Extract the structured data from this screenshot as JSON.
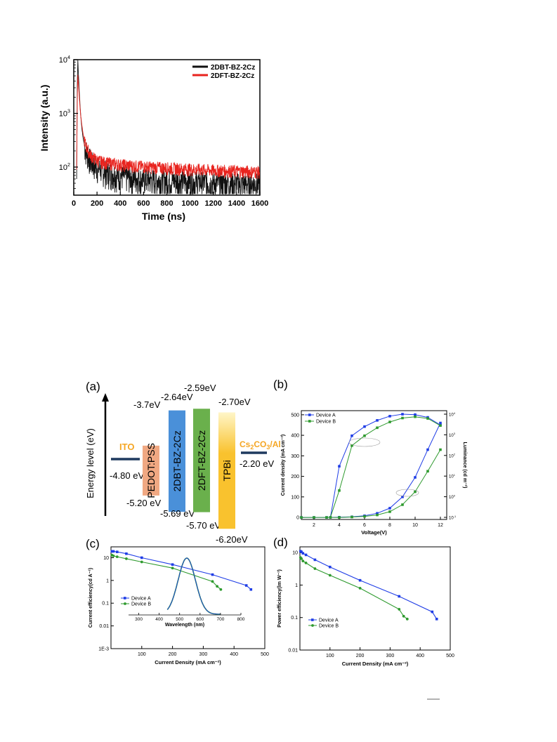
{
  "colors": {
    "black_trace": "#111111",
    "red_trace": "#e8231e",
    "device_a": "#1f3de6",
    "device_b": "#2e9a2e",
    "ito": "#f5a623",
    "pedot": "#f0a882",
    "dbt": "#4a90d9",
    "dft": "#6ab04c",
    "tpbi": "#f9c22e",
    "electrode_bar": "#1e3a5f"
  },
  "chart_data": [
    {
      "type": "line",
      "id": "decay",
      "xlabel": "Time (ns)",
      "ylabel": "Intensity (a.u.)",
      "log_y": true,
      "xlim": [
        0,
        1600
      ],
      "ylim": [
        30,
        10000
      ],
      "xticks": [
        "0",
        "200",
        "400",
        "600",
        "800",
        "1000",
        "1200",
        "1400",
        "1600"
      ],
      "yticks": [
        {
          "base": "10",
          "exp": "2",
          "value": 100
        },
        {
          "base": "10",
          "exp": "3",
          "value": 1000
        },
        {
          "base": "10",
          "exp": "4",
          "value": 10000
        }
      ],
      "legend": "top-right",
      "series": [
        {
          "name": "2DBT-BZ-2Cz",
          "color": "black",
          "x": [
            25,
            30,
            35,
            40,
            45,
            50,
            55,
            60,
            70,
            80,
            90,
            100,
            120,
            140,
            160,
            200,
            250,
            300,
            400,
            500,
            600,
            800,
            1000,
            1200,
            1400,
            1600
          ],
          "y": [
            60,
            3000,
            9800,
            5500,
            3200,
            2000,
            1300,
            900,
            520,
            350,
            270,
            220,
            170,
            140,
            120,
            100,
            90,
            80,
            70,
            65,
            60,
            58,
            55,
            52,
            50,
            50
          ]
        },
        {
          "name": "2DFT-BZ-2Cz",
          "color": "red",
          "x": [
            25,
            30,
            35,
            40,
            45,
            50,
            55,
            60,
            70,
            80,
            90,
            100,
            120,
            140,
            160,
            200,
            250,
            300,
            400,
            500,
            600,
            800,
            1000,
            1200,
            1400,
            1600
          ],
          "y": [
            90,
            1500,
            5200,
            3600,
            2400,
            1700,
            1200,
            900,
            600,
            420,
            330,
            270,
            210,
            175,
            155,
            135,
            125,
            120,
            112,
            107,
            103,
            97,
            92,
            88,
            85,
            82
          ]
        }
      ]
    },
    {
      "type": "diagram",
      "id": "energy",
      "panel_label": "(a)",
      "axis_label": "Energy level (eV)",
      "ito": {
        "label": "ITO",
        "level": "-4.80 eV"
      },
      "cathode": {
        "label_main": "Cs",
        "label_sub1": "2",
        "label_mid": "CO",
        "label_sub2": "3",
        "label_tail": "/Al",
        "level": "-2.20 eV"
      },
      "layers": [
        {
          "name": "PEDOT:PSS",
          "top": "-3.7eV",
          "bottom": "-5.20 eV",
          "lumo": -3.7,
          "homo": -5.2,
          "color": "pedot"
        },
        {
          "name": "2DBT-BZ-2Cz",
          "top": "-2.64eV",
          "bottom": "-5.69 eV",
          "lumo": -2.64,
          "homo": -5.69,
          "color": "dbt"
        },
        {
          "name": "2DFT-BZ-2Cz",
          "top": "-2.59eV",
          "bottom": "-5.70 eV",
          "lumo": -2.59,
          "homo": -5.7,
          "color": "dft"
        },
        {
          "name": "TPBi",
          "top": "-2.70eV",
          "bottom": "-6.20eV",
          "lumo": -2.7,
          "homo": -6.2,
          "color": "tpbi"
        }
      ]
    },
    {
      "type": "line",
      "id": "jvl",
      "panel_label": "(b)",
      "xlabel": "Voltage(V)",
      "ylabel": "Current density (mA cm⁻²)",
      "y2label": "Luminance (cd m⁻²)",
      "xlim": [
        1,
        12.5
      ],
      "ylim": [
        -10,
        520
      ],
      "xticks": [
        "2",
        "4",
        "6",
        "8",
        "10",
        "12"
      ],
      "yticks": [
        "0",
        "100",
        "200",
        "300",
        "400",
        "500"
      ],
      "y2ticks": [
        {
          "b": "10",
          "e": "-1"
        },
        {
          "b": "10",
          "e": "0"
        },
        {
          "b": "10",
          "e": "1"
        },
        {
          "b": "10",
          "e": "2"
        },
        {
          "b": "10",
          "e": "3"
        },
        {
          "b": "10",
          "e": "4"
        }
      ],
      "legend": "top-left",
      "series": [
        {
          "name": "Device A",
          "color": "device_a",
          "axis": "left",
          "x": [
            1,
            2,
            3,
            4,
            5,
            6,
            7,
            8,
            9,
            10,
            11,
            12
          ],
          "y": [
            0,
            0,
            0,
            1,
            3,
            8,
            20,
            45,
            100,
            195,
            330,
            460
          ]
        },
        {
          "name": "Device B",
          "color": "device_b",
          "axis": "left",
          "x": [
            1,
            2,
            3,
            4,
            5,
            6,
            7,
            8,
            9,
            10,
            11,
            12
          ],
          "y": [
            0,
            0,
            0,
            0,
            2,
            5,
            12,
            28,
            62,
            125,
            225,
            330
          ]
        },
        {
          "name": "Device A",
          "color": "device_a",
          "axis": "right",
          "x": [
            3.3,
            4,
            5,
            6,
            7,
            8,
            9,
            10,
            11,
            12
          ],
          "y": [
            0.1,
            30,
            900,
            2500,
            5000,
            8000,
            10000,
            9500,
            7000,
            3000
          ]
        },
        {
          "name": "Device B",
          "color": "device_b",
          "axis": "right",
          "x": [
            3.3,
            4,
            5,
            6,
            7,
            8,
            9,
            10,
            11,
            12
          ],
          "y": [
            0.1,
            2,
            300,
            900,
            2200,
            4200,
            6500,
            7500,
            6200,
            2800
          ]
        }
      ]
    },
    {
      "type": "line",
      "id": "ce",
      "panel_label": "(c)",
      "xlabel": "Current Density (mA cm⁻²)",
      "ylabel": "Current efficiency(cd A⁻¹)",
      "log_y": true,
      "xlim": [
        0,
        500
      ],
      "ylim": [
        0.001,
        30
      ],
      "xticks": [
        "100",
        "200",
        "300",
        "400",
        "500"
      ],
      "yticks": [
        "1E-3",
        "0.01",
        "0.1",
        "1",
        "10"
      ],
      "legend": "bottom-left",
      "series": [
        {
          "name": "Device A",
          "color": "device_a",
          "x": [
            3,
            8,
            20,
            50,
            100,
            200,
            330,
            440,
            455
          ],
          "y": [
            19,
            19,
            18,
            15,
            10,
            5,
            1.8,
            0.6,
            0.4
          ]
        },
        {
          "name": "Device B",
          "color": "device_b",
          "x": [
            3,
            8,
            20,
            50,
            100,
            200,
            330,
            345,
            357
          ],
          "y": [
            13,
            12,
            11,
            9,
            6.5,
            3.5,
            0.9,
            0.55,
            0.4
          ]
        }
      ],
      "inset": {
        "xlabel": "Wavelength (nm)",
        "xticks": [
          "300",
          "400",
          "500",
          "600",
          "700",
          "800"
        ],
        "xlim": [
          250,
          800
        ],
        "peak_nm": 535,
        "fwhm_nm": 100
      }
    },
    {
      "type": "line",
      "id": "pe",
      "panel_label": "(d)",
      "xlabel": "Current Density (mA cm⁻²)",
      "ylabel": "Power efficiency(lm W⁻¹)",
      "log_y": true,
      "xlim": [
        0,
        500
      ],
      "ylim": [
        0.01,
        15
      ],
      "xticks": [
        "100",
        "200",
        "300",
        "400",
        "500"
      ],
      "yticks": [
        "0.01",
        "0.1",
        "1",
        "10"
      ],
      "legend": "bottom-left",
      "series": [
        {
          "name": "Device A",
          "color": "device_a",
          "x": [
            2,
            5,
            10,
            20,
            50,
            100,
            200,
            330,
            440,
            455
          ],
          "y": [
            11,
            10.5,
            9.5,
            8.5,
            6,
            3.6,
            1.4,
            0.45,
            0.15,
            0.09
          ]
        },
        {
          "name": "Device B",
          "color": "device_b",
          "x": [
            2,
            5,
            10,
            20,
            50,
            100,
            200,
            330,
            345,
            357
          ],
          "y": [
            7,
            6.5,
            5.5,
            4.8,
            3.2,
            2,
            0.8,
            0.18,
            0.11,
            0.09
          ]
        }
      ]
    }
  ]
}
